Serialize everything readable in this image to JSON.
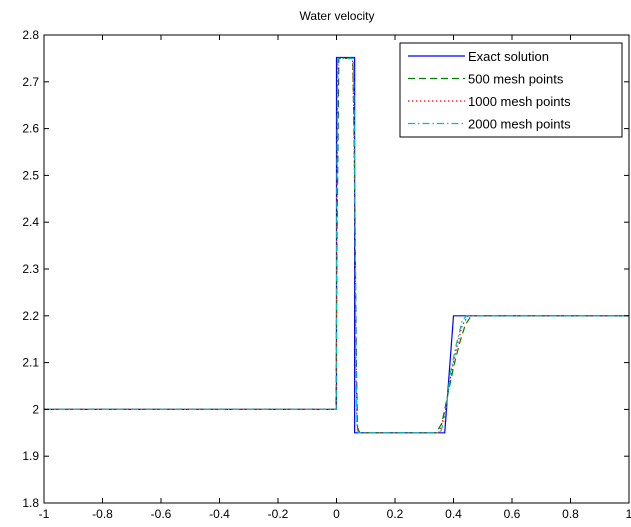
{
  "chart_data": {
    "type": "line",
    "title": "Water velocity",
    "xlabel": "",
    "ylabel": "",
    "xlim": [
      -1,
      1
    ],
    "ylim": [
      1.8,
      2.8
    ],
    "xticks": [
      -1,
      -0.8,
      -0.6,
      -0.4,
      -0.2,
      0,
      0.2,
      0.4,
      0.6,
      0.8,
      1
    ],
    "xtick_labels": [
      "-1",
      "-0.8",
      "-0.6",
      "-0.4",
      "-0.2",
      "0",
      "0.2",
      "0.4",
      "0.6",
      "0.8",
      "1"
    ],
    "yticks": [
      1.8,
      1.9,
      2.0,
      2.1,
      2.2,
      2.3,
      2.4,
      2.5,
      2.6,
      2.7,
      2.8
    ],
    "ytick_labels": [
      "1.8",
      "1.9",
      "2",
      "2.1",
      "2.2",
      "2.3",
      "2.4",
      "2.5",
      "2.6",
      "2.7",
      "2.8"
    ],
    "grid": false,
    "legend_position": "top-right",
    "series": [
      {
        "name": "Exact solution",
        "color": "#0000ff",
        "dash": "solid",
        "x": [
          -1,
          0,
          0,
          0.062,
          0.062,
          0.37,
          0.4,
          1
        ],
        "y": [
          2.0,
          2.0,
          2.752,
          2.752,
          1.95,
          1.95,
          2.2,
          2.2
        ]
      },
      {
        "name": "500 mesh points",
        "color": "#008000",
        "dash": "dashed",
        "x": [
          -1,
          -0.002,
          0.002,
          0.008,
          0.05,
          0.056,
          0.062,
          0.068,
          0.072,
          0.08,
          0.34,
          0.36,
          0.38,
          0.4,
          0.42,
          0.44,
          0.46,
          1
        ],
        "y": [
          2.0,
          2.0,
          2.37,
          2.75,
          2.75,
          2.74,
          2.5,
          2.1,
          1.96,
          1.95,
          1.95,
          1.97,
          2.03,
          2.09,
          2.14,
          2.18,
          2.2,
          2.2
        ]
      },
      {
        "name": "1000 mesh points",
        "color": "#ff0000",
        "dash": "dotted",
        "x": [
          -1,
          -0.001,
          0.001,
          0.005,
          0.055,
          0.06,
          0.065,
          0.07,
          0.078,
          0.35,
          0.37,
          0.39,
          0.41,
          0.43,
          0.45,
          1
        ],
        "y": [
          2.0,
          2.0,
          2.4,
          2.75,
          2.75,
          2.6,
          2.2,
          1.97,
          1.95,
          1.95,
          1.99,
          2.07,
          2.13,
          2.18,
          2.2,
          2.2
        ]
      },
      {
        "name": "2000 mesh points",
        "color": "#00bfbf",
        "dash": "dashdot",
        "x": [
          -1,
          -0.001,
          0.001,
          0.004,
          0.058,
          0.062,
          0.066,
          0.07,
          0.075,
          0.355,
          0.37,
          0.39,
          0.41,
          0.43,
          0.445,
          1
        ],
        "y": [
          2.0,
          2.0,
          2.45,
          2.75,
          2.75,
          2.55,
          2.1,
          1.96,
          1.95,
          1.95,
          1.98,
          2.08,
          2.14,
          2.19,
          2.2,
          2.2
        ]
      }
    ]
  }
}
